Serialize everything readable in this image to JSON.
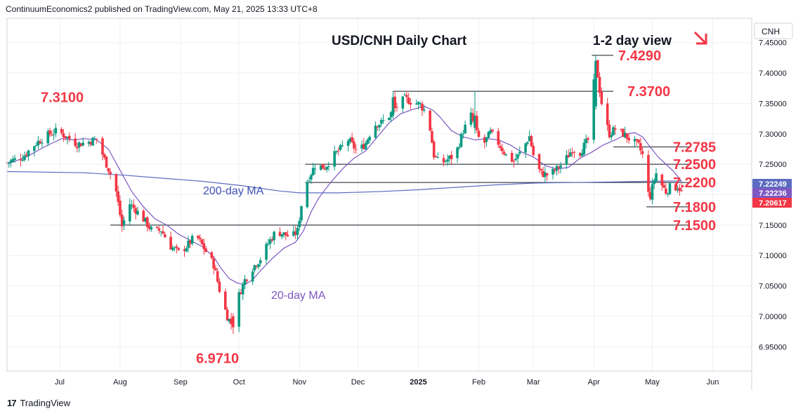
{
  "header": {
    "attribution": "ContinuumEconomics2 published on TradingView.com, May 21, 2025 13:33 UTC+8"
  },
  "footer": {
    "brand": "TradingView",
    "logo_mark": "17"
  },
  "symbol_box": "CNH",
  "colors": {
    "bull": "#089981",
    "bear": "#f23645",
    "ma20": "#7e57c2",
    "ma200": "#5b6bc0",
    "level": "#f23645",
    "grid": "#eef0f3"
  },
  "chart_data": {
    "type": "candlestick",
    "title": "USD/CNH Daily Chart",
    "view_label": "1-2 day view",
    "view_arrow": "down-right-arrow",
    "y_ticks": [
      "7.45000",
      "7.40000",
      "7.35000",
      "7.30000",
      "7.25000",
      "7.20000",
      "7.15000",
      "7.10000",
      "7.05000",
      "7.00000",
      "6.95000"
    ],
    "y_tick_values": [
      7.45,
      7.4,
      7.35,
      7.3,
      7.25,
      7.2,
      7.15,
      7.1,
      7.05,
      7.0,
      6.95
    ],
    "ylim": [
      6.91,
      7.49
    ],
    "x_ticks": [
      {
        "label": "Jul",
        "day": 27
      },
      {
        "label": "Aug",
        "day": 58
      },
      {
        "label": "Sep",
        "day": 89
      },
      {
        "label": "Oct",
        "day": 119
      },
      {
        "label": "Nov",
        "day": 150
      },
      {
        "label": "Dec",
        "day": 180
      },
      {
        "label": "2025",
        "day": 211
      },
      {
        "label": "Feb",
        "day": 242
      },
      {
        "label": "Mar",
        "day": 270
      },
      {
        "label": "Apr",
        "day": 301
      },
      {
        "label": "May",
        "day": 331
      },
      {
        "label": "Jun",
        "day": 362
      }
    ],
    "xlim": [
      0,
      382
    ],
    "levels": [
      {
        "label": "7.4290",
        "value": 7.429,
        "x_from": 300,
        "x_to": 311
      },
      {
        "label": "7.3700",
        "value": 7.37,
        "x_from": 198,
        "x_to": 311
      },
      {
        "label": "7.3100",
        "value": 7.31,
        "x_from": null,
        "x_to": null
      },
      {
        "label": "7.2785",
        "value": 7.2785,
        "x_from": 311,
        "x_to": 350
      },
      {
        "label": "7.2500",
        "value": 7.25,
        "x_from": 153,
        "x_to": 350
      },
      {
        "label": "7.2200",
        "value": 7.22,
        "x_from": 153,
        "x_to": 350
      },
      {
        "label": "7.1800",
        "value": 7.18,
        "x_from": 328,
        "x_to": 350
      },
      {
        "label": "7.1500",
        "value": 7.15,
        "x_from": 53,
        "x_to": 350
      },
      {
        "label": "6.9710",
        "value": 6.971,
        "x_from": null,
        "x_to": null
      }
    ],
    "annotations": [
      {
        "text": "200-day MA",
        "color": "#3f51b5"
      },
      {
        "text": "20-day MA",
        "color": "#7e57c2"
      }
    ],
    "last_values": [
      {
        "label": "7.22249",
        "value": 7.2225,
        "color": "#5b6bc0"
      },
      {
        "label": "7.22236",
        "value": 7.2224,
        "color": "#7e57c2"
      },
      {
        "label": "7.20617",
        "value": 7.2062,
        "color": "#f23645"
      }
    ],
    "close_path": [
      [
        0,
        7.253
      ],
      [
        8,
        7.262
      ],
      [
        15,
        7.285
      ],
      [
        22,
        7.3
      ],
      [
        26,
        7.305
      ],
      [
        30,
        7.296
      ],
      [
        36,
        7.283
      ],
      [
        42,
        7.287
      ],
      [
        46,
        7.292
      ],
      [
        50,
        7.258
      ],
      [
        53,
        7.235
      ],
      [
        56,
        7.205
      ],
      [
        59,
        7.148
      ],
      [
        63,
        7.185
      ],
      [
        66,
        7.175
      ],
      [
        70,
        7.16
      ],
      [
        75,
        7.138
      ],
      [
        79,
        7.142
      ],
      [
        84,
        7.115
      ],
      [
        88,
        7.105
      ],
      [
        92,
        7.115
      ],
      [
        97,
        7.133
      ],
      [
        101,
        7.112
      ],
      [
        106,
        7.085
      ],
      [
        110,
        7.03
      ],
      [
        113,
        7.0
      ],
      [
        116,
        6.982
      ],
      [
        119,
        7.035
      ],
      [
        122,
        7.06
      ],
      [
        126,
        7.08
      ],
      [
        130,
        7.095
      ],
      [
        134,
        7.12
      ],
      [
        138,
        7.14
      ],
      [
        142,
        7.135
      ],
      [
        146,
        7.13
      ],
      [
        149,
        7.14
      ],
      [
        152,
        7.205
      ],
      [
        155,
        7.23
      ],
      [
        158,
        7.248
      ],
      [
        163,
        7.245
      ],
      [
        167,
        7.262
      ],
      [
        171,
        7.275
      ],
      [
        175,
        7.29
      ],
      [
        180,
        7.27
      ],
      [
        184,
        7.285
      ],
      [
        188,
        7.315
      ],
      [
        192,
        7.318
      ],
      [
        196,
        7.33
      ],
      [
        200,
        7.345
      ],
      [
        204,
        7.358
      ],
      [
        208,
        7.352
      ],
      [
        212,
        7.348
      ],
      [
        216,
        7.33
      ],
      [
        219,
        7.265
      ],
      [
        222,
        7.25
      ],
      [
        226,
        7.258
      ],
      [
        230,
        7.265
      ],
      [
        234,
        7.305
      ],
      [
        238,
        7.33
      ],
      [
        241,
        7.3
      ],
      [
        244,
        7.28
      ],
      [
        248,
        7.302
      ],
      [
        252,
        7.285
      ],
      [
        256,
        7.265
      ],
      [
        260,
        7.255
      ],
      [
        264,
        7.272
      ],
      [
        268,
        7.296
      ],
      [
        271,
        7.25
      ],
      [
        274,
        7.235
      ],
      [
        278,
        7.232
      ],
      [
        282,
        7.242
      ],
      [
        286,
        7.255
      ],
      [
        290,
        7.275
      ],
      [
        294,
        7.27
      ],
      [
        298,
        7.29
      ],
      [
        300,
        7.345
      ],
      [
        302,
        7.42
      ],
      [
        304,
        7.372
      ],
      [
        306,
        7.33
      ],
      [
        309,
        7.3
      ],
      [
        312,
        7.308
      ],
      [
        316,
        7.3
      ],
      [
        320,
        7.29
      ],
      [
        324,
        7.28
      ],
      [
        326,
        7.265
      ],
      [
        328,
        7.205
      ],
      [
        330,
        7.198
      ],
      [
        332,
        7.225
      ],
      [
        334,
        7.245
      ],
      [
        336,
        7.215
      ],
      [
        338,
        7.205
      ],
      [
        340,
        7.212
      ],
      [
        342,
        7.21
      ],
      [
        344,
        7.214
      ],
      [
        346,
        7.206
      ]
    ],
    "ma20_path": [
      [
        0,
        7.25
      ],
      [
        10,
        7.262
      ],
      [
        20,
        7.28
      ],
      [
        28,
        7.292
      ],
      [
        34,
        7.29
      ],
      [
        40,
        7.292
      ],
      [
        46,
        7.29
      ],
      [
        52,
        7.275
      ],
      [
        58,
        7.24
      ],
      [
        64,
        7.205
      ],
      [
        70,
        7.18
      ],
      [
        76,
        7.16
      ],
      [
        82,
        7.15
      ],
      [
        88,
        7.135
      ],
      [
        94,
        7.125
      ],
      [
        100,
        7.115
      ],
      [
        106,
        7.098
      ],
      [
        110,
        7.078
      ],
      [
        114,
        7.062
      ],
      [
        118,
        7.055
      ],
      [
        122,
        7.052
      ],
      [
        126,
        7.06
      ],
      [
        130,
        7.075
      ],
      [
        136,
        7.095
      ],
      [
        142,
        7.112
      ],
      [
        148,
        7.122
      ],
      [
        152,
        7.14
      ],
      [
        156,
        7.172
      ],
      [
        160,
        7.195
      ],
      [
        166,
        7.22
      ],
      [
        172,
        7.242
      ],
      [
        178,
        7.26
      ],
      [
        184,
        7.272
      ],
      [
        190,
        7.295
      ],
      [
        196,
        7.318
      ],
      [
        202,
        7.333
      ],
      [
        208,
        7.34
      ],
      [
        214,
        7.345
      ],
      [
        218,
        7.34
      ],
      [
        222,
        7.328
      ],
      [
        228,
        7.305
      ],
      [
        234,
        7.295
      ],
      [
        240,
        7.29
      ],
      [
        246,
        7.292
      ],
      [
        252,
        7.29
      ],
      [
        258,
        7.282
      ],
      [
        264,
        7.27
      ],
      [
        270,
        7.262
      ],
      [
        276,
        7.248
      ],
      [
        282,
        7.242
      ],
      [
        288,
        7.245
      ],
      [
        294,
        7.26
      ],
      [
        300,
        7.27
      ],
      [
        306,
        7.282
      ],
      [
        312,
        7.29
      ],
      [
        318,
        7.3
      ],
      [
        322,
        7.302
      ],
      [
        326,
        7.295
      ],
      [
        330,
        7.278
      ],
      [
        334,
        7.262
      ],
      [
        338,
        7.25
      ],
      [
        342,
        7.238
      ],
      [
        346,
        7.222
      ]
    ],
    "ma200_path": [
      [
        0,
        7.238
      ],
      [
        40,
        7.236
      ],
      [
        60,
        7.232
      ],
      [
        80,
        7.227
      ],
      [
        100,
        7.222
      ],
      [
        120,
        7.215
      ],
      [
        140,
        7.206
      ],
      [
        150,
        7.203
      ],
      [
        170,
        7.203
      ],
      [
        190,
        7.205
      ],
      [
        210,
        7.208
      ],
      [
        230,
        7.212
      ],
      [
        250,
        7.216
      ],
      [
        270,
        7.219
      ],
      [
        290,
        7.22
      ],
      [
        310,
        7.221
      ],
      [
        330,
        7.222
      ],
      [
        346,
        7.2225
      ]
    ]
  }
}
